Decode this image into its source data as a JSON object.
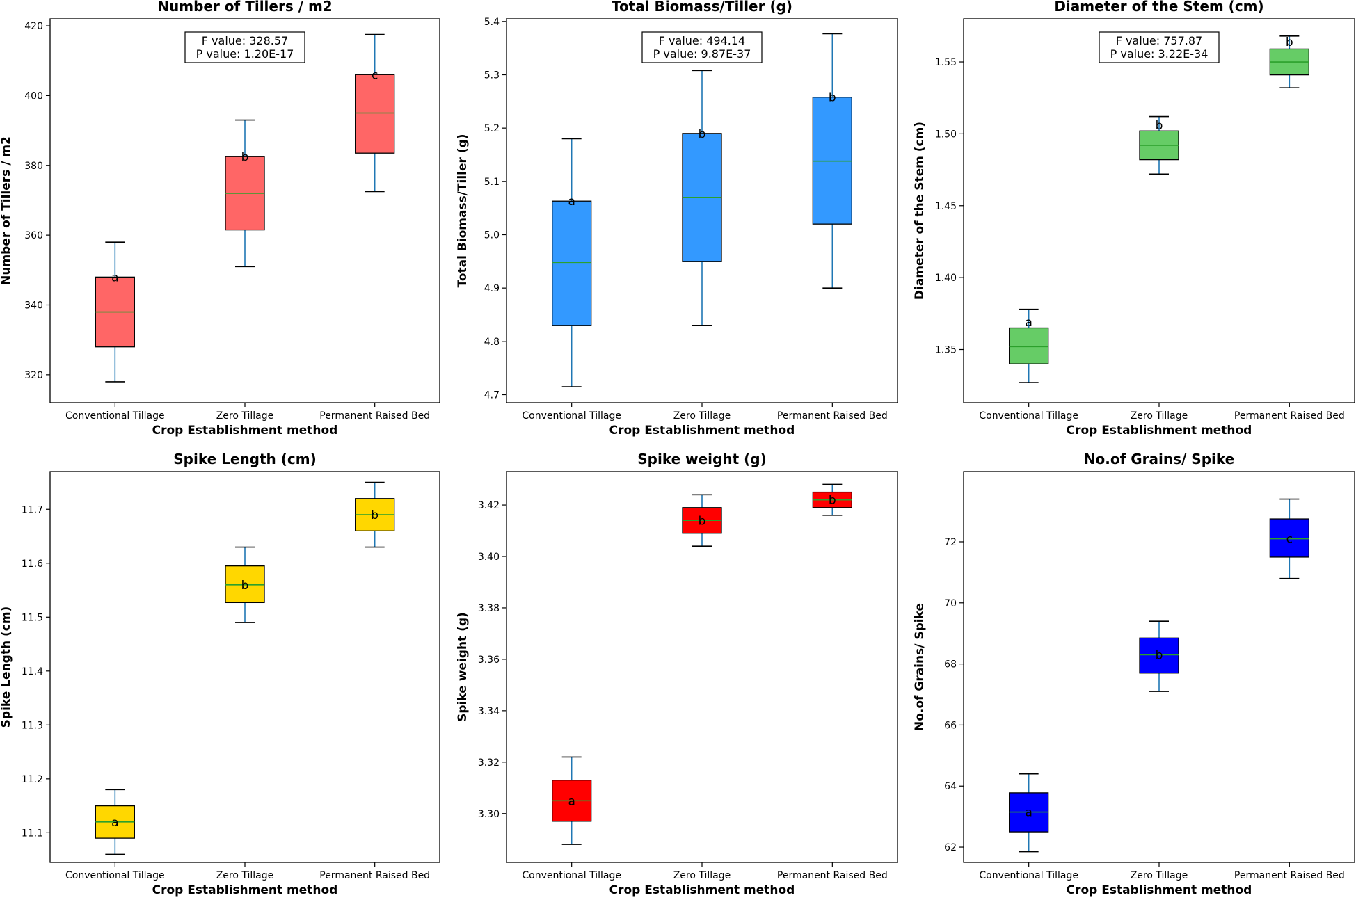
{
  "chart_data": [
    {
      "type": "box",
      "title": "Number of Tillers / m2",
      "xlabel": "Crop Establishment method",
      "ylabel": "Number of Tillers / m2",
      "ylim": [
        312,
        422
      ],
      "yticks": [
        320,
        340,
        360,
        380,
        400,
        420
      ],
      "tick_decimals": 0,
      "categories": [
        "Conventional Tillage",
        "Zero Tillage",
        "Permanent Raised Bed"
      ],
      "box_color": "#ff6666",
      "boxes": [
        {
          "whisker_low": 318,
          "q1": 328,
          "median": 338,
          "q3": 348,
          "whisker_high": 358
        },
        {
          "whisker_low": 351,
          "q1": 361.5,
          "median": 372,
          "q3": 382.5,
          "whisker_high": 393
        },
        {
          "whisker_low": 372.5,
          "q1": 383.5,
          "median": 395,
          "q3": 406,
          "whisker_high": 417.5
        }
      ],
      "letters": [
        {
          "text": "a",
          "y": 348
        },
        {
          "text": "b",
          "y": 382.5
        },
        {
          "text": "c",
          "y": 406
        }
      ],
      "stats": {
        "f_value": "F value: 328.57",
        "p_value": "P value: 1.20E-17"
      }
    },
    {
      "type": "box",
      "title": "Total Biomass/Tiller (g)",
      "xlabel": "Crop Establishment method",
      "ylabel": "Total Biomass/Tiller (g)",
      "ylim": [
        4.685,
        5.405
      ],
      "yticks": [
        4.7,
        4.8,
        4.9,
        5.0,
        5.1,
        5.2,
        5.3,
        5.4
      ],
      "tick_decimals": 1,
      "categories": [
        "Conventional Tillage",
        "Zero Tillage",
        "Permanent Raised Bed"
      ],
      "box_color": "#3399ff",
      "boxes": [
        {
          "whisker_low": 4.715,
          "q1": 4.83,
          "median": 4.948,
          "q3": 5.063,
          "whisker_high": 5.18
        },
        {
          "whisker_low": 4.83,
          "q1": 4.95,
          "median": 5.07,
          "q3": 5.19,
          "whisker_high": 5.308
        },
        {
          "whisker_low": 4.9,
          "q1": 5.02,
          "median": 5.138,
          "q3": 5.258,
          "whisker_high": 5.377
        }
      ],
      "letters": [
        {
          "text": "a",
          "y": 5.063
        },
        {
          "text": "b",
          "y": 5.19
        },
        {
          "text": "b",
          "y": 5.258
        }
      ],
      "stats": {
        "f_value": "F value: 494.14",
        "p_value": "P value: 9.87E-37"
      }
    },
    {
      "type": "box",
      "title": "Diameter of the Stem (cm)",
      "xlabel": "Crop Establishment method",
      "ylabel": "Diameter of the Stem (cm)",
      "ylim": [
        1.313,
        1.58
      ],
      "yticks": [
        1.35,
        1.4,
        1.45,
        1.5,
        1.55
      ],
      "tick_decimals": 2,
      "categories": [
        "Conventional Tillage",
        "Zero Tillage",
        "Permanent Raised Bed"
      ],
      "box_color": "#66cc66",
      "boxes": [
        {
          "whisker_low": 1.327,
          "q1": 1.34,
          "median": 1.352,
          "q3": 1.365,
          "whisker_high": 1.378
        },
        {
          "whisker_low": 1.472,
          "q1": 1.482,
          "median": 1.492,
          "q3": 1.502,
          "whisker_high": 1.512
        },
        {
          "whisker_low": 1.532,
          "q1": 1.541,
          "median": 1.55,
          "q3": 1.559,
          "whisker_high": 1.568
        }
      ],
      "letters": [
        {
          "text": "a",
          "y": 1.369
        },
        {
          "text": "b",
          "y": 1.506
        },
        {
          "text": "b",
          "y": 1.564
        }
      ],
      "stats": {
        "f_value": "F value: 757.87",
        "p_value": "P value: 3.22E-34"
      }
    },
    {
      "type": "box",
      "title": "Spike Length (cm)",
      "xlabel": "Crop Establishment method",
      "ylabel": "Spike Length (cm)",
      "ylim": [
        11.045,
        11.77
      ],
      "yticks": [
        11.1,
        11.2,
        11.3,
        11.4,
        11.5,
        11.6,
        11.7
      ],
      "tick_decimals": 1,
      "categories": [
        "Conventional Tillage",
        "Zero Tillage",
        "Permanent Raised Bed"
      ],
      "box_color": "#ffd700",
      "boxes": [
        {
          "whisker_low": 11.06,
          "q1": 11.09,
          "median": 11.12,
          "q3": 11.15,
          "whisker_high": 11.18
        },
        {
          "whisker_low": 11.49,
          "q1": 11.527,
          "median": 11.56,
          "q3": 11.595,
          "whisker_high": 11.63
        },
        {
          "whisker_low": 11.63,
          "q1": 11.66,
          "median": 11.69,
          "q3": 11.72,
          "whisker_high": 11.75
        }
      ],
      "letters": [
        {
          "text": "a",
          "y": 11.12
        },
        {
          "text": "b",
          "y": 11.56
        },
        {
          "text": "b",
          "y": 11.69
        }
      ]
    },
    {
      "type": "box",
      "title": "Spike weight (g)",
      "xlabel": "Crop Establishment method",
      "ylabel": "Spike weight (g)",
      "ylim": [
        3.281,
        3.433
      ],
      "yticks": [
        3.3,
        3.32,
        3.34,
        3.36,
        3.38,
        3.4,
        3.42
      ],
      "tick_decimals": 2,
      "categories": [
        "Conventional Tillage",
        "Zero Tillage",
        "Permanent Raised Bed"
      ],
      "box_color": "#ff0000",
      "boxes": [
        {
          "whisker_low": 3.288,
          "q1": 3.297,
          "median": 3.305,
          "q3": 3.313,
          "whisker_high": 3.322
        },
        {
          "whisker_low": 3.404,
          "q1": 3.409,
          "median": 3.414,
          "q3": 3.419,
          "whisker_high": 3.424
        },
        {
          "whisker_low": 3.416,
          "q1": 3.419,
          "median": 3.422,
          "q3": 3.425,
          "whisker_high": 3.428
        }
      ],
      "letters": [
        {
          "text": "a",
          "y": 3.305
        },
        {
          "text": "b",
          "y": 3.414
        },
        {
          "text": "b",
          "y": 3.422
        }
      ]
    },
    {
      "type": "box",
      "title": "No.of Grains/ Spike",
      "xlabel": "Crop Establishment method",
      "ylabel": "No.of Grains/ Spike",
      "ylim": [
        61.5,
        74.3
      ],
      "yticks": [
        62,
        64,
        66,
        68,
        70,
        72
      ],
      "tick_decimals": 0,
      "categories": [
        "Conventional Tillage",
        "Zero Tillage",
        "Permanent Raised Bed"
      ],
      "box_color": "#0000ff",
      "boxes": [
        {
          "whisker_low": 61.85,
          "q1": 62.5,
          "median": 63.15,
          "q3": 63.78,
          "whisker_high": 64.4
        },
        {
          "whisker_low": 67.1,
          "q1": 67.7,
          "median": 68.3,
          "q3": 68.85,
          "whisker_high": 69.4
        },
        {
          "whisker_low": 70.8,
          "q1": 71.5,
          "median": 72.1,
          "q3": 72.75,
          "whisker_high": 73.4
        }
      ],
      "letters": [
        {
          "text": "a",
          "y": 63.15
        },
        {
          "text": "b",
          "y": 68.3
        },
        {
          "text": "c",
          "y": 72.1
        }
      ]
    }
  ]
}
